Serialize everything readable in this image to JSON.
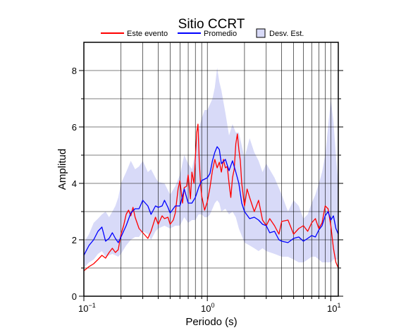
{
  "chart_data": {
    "type": "line",
    "title": "Sitio CCRT",
    "xlabel": "Periodo (s)",
    "ylabel": "Amplitud",
    "x_scale": "log",
    "xlim": [
      0.1,
      11.5
    ],
    "ylim": [
      0,
      9
    ],
    "grid": true,
    "legend_position": "top",
    "x_tick_labels": [
      {
        "base": "10",
        "exp": "−1",
        "value": 0.1
      },
      {
        "base": "10",
        "exp": "0",
        "value": 1
      },
      {
        "base": "10",
        "exp": "1",
        "value": 10
      }
    ],
    "y_ticks": [
      0,
      2,
      4,
      6,
      8
    ],
    "colors": {
      "event": "#ff0000",
      "mean": "#0000ff",
      "band": "#d8daf8"
    },
    "legend": {
      "event_label": "Este evento",
      "mean_label": "Promedio",
      "band_label": "Desv. Est."
    },
    "series": [
      {
        "name": "Este evento",
        "color": "#ff0000",
        "x": [
          0.1,
          0.11,
          0.12,
          0.13,
          0.14,
          0.15,
          0.16,
          0.17,
          0.18,
          0.19,
          0.2,
          0.21,
          0.22,
          0.23,
          0.24,
          0.25,
          0.26,
          0.28,
          0.3,
          0.33,
          0.35,
          0.38,
          0.4,
          0.43,
          0.45,
          0.48,
          0.5,
          0.53,
          0.55,
          0.58,
          0.6,
          0.63,
          0.65,
          0.68,
          0.7,
          0.73,
          0.75,
          0.78,
          0.8,
          0.82,
          0.84,
          0.86,
          0.88,
          0.9,
          0.95,
          1.0,
          1.05,
          1.1,
          1.15,
          1.2,
          1.25,
          1.3,
          1.35,
          1.4,
          1.45,
          1.5,
          1.55,
          1.6,
          1.65,
          1.7,
          1.75,
          1.8,
          1.85,
          1.9,
          2.0,
          2.1,
          2.2,
          2.4,
          2.6,
          2.8,
          3.0,
          3.2,
          3.5,
          3.8,
          4.0,
          4.5,
          5.0,
          5.5,
          6.0,
          6.5,
          7.0,
          7.5,
          8.0,
          8.5,
          9.0,
          9.5,
          10.0,
          10.5,
          11.0,
          11.5
        ],
        "y": [
          0.9,
          1.05,
          1.15,
          1.3,
          1.45,
          1.35,
          1.55,
          1.7,
          1.55,
          1.65,
          2.2,
          2.5,
          2.9,
          3.05,
          2.85,
          3.15,
          2.8,
          2.4,
          2.25,
          2.05,
          2.3,
          2.8,
          2.55,
          2.85,
          2.75,
          2.8,
          2.55,
          2.7,
          2.95,
          3.8,
          4.1,
          3.3,
          3.85,
          3.9,
          4.3,
          3.45,
          4.4,
          4.0,
          4.9,
          5.8,
          6.1,
          4.8,
          4.0,
          3.55,
          3.05,
          3.35,
          3.85,
          4.45,
          4.85,
          4.55,
          4.75,
          4.4,
          4.85,
          4.55,
          4.6,
          4.0,
          3.5,
          4.2,
          4.5,
          5.4,
          5.75,
          5.2,
          4.8,
          4.0,
          3.2,
          3.8,
          3.5,
          3.0,
          3.4,
          2.7,
          2.5,
          2.75,
          2.5,
          2.2,
          2.65,
          2.7,
          2.2,
          2.4,
          2.5,
          2.3,
          2.6,
          2.75,
          2.4,
          2.6,
          3.2,
          3.1,
          2.5,
          1.7,
          1.2,
          1.0
        ]
      },
      {
        "name": "Promedio",
        "color": "#0000ff",
        "x": [
          0.1,
          0.11,
          0.12,
          0.13,
          0.14,
          0.15,
          0.16,
          0.17,
          0.18,
          0.19,
          0.2,
          0.22,
          0.24,
          0.26,
          0.28,
          0.3,
          0.33,
          0.35,
          0.38,
          0.4,
          0.43,
          0.45,
          0.48,
          0.5,
          0.55,
          0.6,
          0.65,
          0.7,
          0.75,
          0.8,
          0.85,
          0.9,
          0.95,
          1.0,
          1.05,
          1.1,
          1.15,
          1.2,
          1.25,
          1.3,
          1.4,
          1.5,
          1.6,
          1.7,
          1.8,
          1.9,
          2.0,
          2.2,
          2.4,
          2.6,
          2.8,
          3.0,
          3.2,
          3.5,
          3.8,
          4.0,
          4.5,
          5.0,
          5.5,
          6.0,
          6.5,
          7.0,
          7.5,
          8.0,
          8.5,
          9.0,
          9.5,
          10.0,
          10.5,
          11.0,
          11.5
        ],
        "y": [
          1.45,
          1.8,
          2.0,
          2.3,
          2.45,
          1.95,
          2.05,
          2.25,
          2.05,
          1.9,
          2.1,
          2.5,
          2.95,
          3.1,
          3.1,
          3.4,
          3.2,
          2.9,
          3.2,
          3.15,
          3.2,
          3.4,
          3.15,
          2.95,
          3.2,
          3.2,
          3.8,
          3.3,
          3.3,
          3.5,
          3.85,
          4.1,
          4.15,
          4.2,
          4.35,
          4.8,
          5.1,
          5.3,
          5.2,
          4.7,
          4.85,
          4.45,
          4.8,
          4.4,
          4.0,
          3.3,
          3.0,
          2.75,
          2.8,
          2.7,
          2.55,
          2.5,
          2.25,
          2.3,
          2.0,
          1.95,
          1.9,
          2.05,
          2.1,
          1.95,
          2.05,
          2.15,
          2.1,
          2.35,
          2.5,
          2.85,
          3.0,
          2.7,
          2.85,
          2.4,
          2.2
        ]
      }
    ],
    "band": {
      "name": "Desv. Est.",
      "color": "#d8daf8",
      "x": [
        0.1,
        0.11,
        0.12,
        0.13,
        0.14,
        0.15,
        0.16,
        0.17,
        0.18,
        0.19,
        0.2,
        0.22,
        0.24,
        0.26,
        0.28,
        0.3,
        0.33,
        0.35,
        0.38,
        0.4,
        0.45,
        0.5,
        0.55,
        0.6,
        0.65,
        0.7,
        0.75,
        0.8,
        0.85,
        0.9,
        0.95,
        1.0,
        1.05,
        1.1,
        1.15,
        1.2,
        1.25,
        1.3,
        1.4,
        1.5,
        1.6,
        1.7,
        1.8,
        2.0,
        2.2,
        2.4,
        2.6,
        2.8,
        3.0,
        3.5,
        4.0,
        4.5,
        5.0,
        5.5,
        6.0,
        6.5,
        7.0,
        7.5,
        8.0,
        8.5,
        9.0,
        9.5,
        10.0,
        10.5,
        11.0,
        11.5
      ],
      "upper": [
        1.9,
        2.2,
        2.6,
        2.75,
        2.9,
        3.0,
        2.8,
        3.0,
        3.2,
        3.5,
        4.0,
        4.4,
        4.8,
        4.5,
        4.6,
        4.8,
        4.4,
        4.5,
        4.2,
        4.05,
        4.0,
        3.6,
        3.9,
        4.3,
        5.0,
        4.7,
        4.5,
        5.1,
        5.9,
        6.3,
        6.6,
        6.6,
        6.8,
        7.0,
        7.4,
        8.1,
        7.6,
        7.3,
        6.5,
        5.7,
        6.1,
        5.8,
        5.8,
        4.9,
        5.6,
        5.1,
        4.8,
        4.4,
        4.7,
        4.2,
        3.6,
        3.0,
        3.4,
        3.2,
        2.75,
        2.9,
        3.3,
        3.6,
        4.0,
        4.4,
        5.0,
        6.0,
        7.0,
        6.2,
        5.0,
        4.0
      ],
      "lower": [
        1.0,
        1.2,
        1.3,
        1.5,
        1.6,
        1.4,
        1.45,
        1.5,
        1.45,
        1.4,
        1.5,
        1.8,
        2.0,
        2.1,
        2.1,
        2.3,
        2.2,
        2.0,
        2.3,
        2.4,
        2.5,
        2.4,
        2.5,
        2.5,
        2.8,
        2.6,
        2.7,
        2.7,
        2.9,
        2.9,
        2.8,
        2.8,
        2.9,
        3.1,
        3.3,
        3.4,
        3.3,
        3.0,
        3.1,
        2.9,
        3.0,
        2.8,
        2.4,
        1.9,
        1.8,
        1.7,
        1.6,
        1.7,
        1.6,
        1.5,
        1.4,
        1.4,
        1.3,
        1.2,
        1.2,
        1.3,
        1.4,
        1.4,
        1.3,
        1.2,
        1.2,
        1.2,
        1.2,
        1.3,
        1.3,
        1.3
      ]
    }
  }
}
